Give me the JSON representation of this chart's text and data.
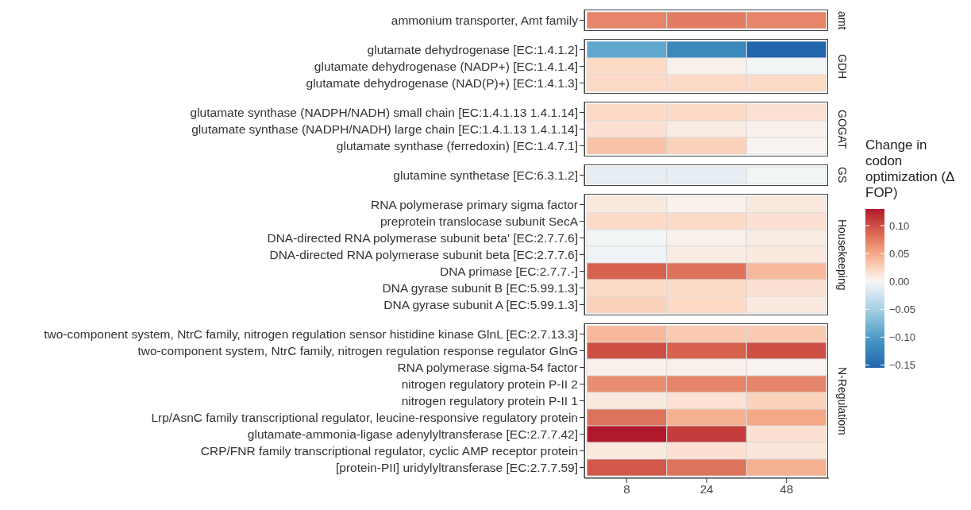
{
  "chart_data": {
    "type": "heatmap",
    "categories": [
      "8",
      "24",
      "48"
    ],
    "y_categories": [
      "ammonium transporter, Amt family",
      "glutamate dehydrogenase [EC:1.4.1.2]",
      "glutamate dehydrogenase (NADP+) [EC:1.4.1.4]",
      "glutamate dehydrogenase (NAD(P)+) [EC:1.4.1.3]",
      "glutamate synthase (NADPH/NADH) small chain [EC:1.4.1.13 1.4.1.14]",
      "glutamate synthase (NADPH/NADH) large chain [EC:1.4.1.13 1.4.1.14]",
      "glutamate synthase (ferredoxin) [EC:1.4.7.1]",
      "glutamine synthetase [EC:6.3.1.2]",
      "RNA polymerase primary sigma factor",
      "preprotein translocase subunit SecA",
      "DNA-directed RNA polymerase subunit beta' [EC:2.7.7.6]",
      "DNA-directed RNA polymerase subunit beta [EC:2.7.7.6]",
      "DNA primase [EC:2.7.7.-]",
      "DNA gyrase subunit B [EC:5.99.1.3]",
      "DNA gyrase subunit A [EC:5.99.1.3]",
      "two-component system, NtrC family, nitrogen regulation sensor histidine kinase GlnL [EC:2.7.13.3]",
      "two-component system, NtrC family, nitrogen regulation response regulator GlnG",
      "RNA polymerase sigma-54 factor",
      "nitrogen regulatory protein P-II 2",
      "nitrogen regulatory protein P-II 1",
      "Lrp/AsnC family transcriptional regulator, leucine-responsive regulatory protein",
      "glutamate-ammonia-ligase adenylyltransferase [EC:2.7.7.42]",
      "CRP/FNR family transcriptional regulator, cyclic AMP receptor protein",
      "[protein-PII] uridylyltransferase [EC:2.7.7.59]"
    ],
    "y2_categories": [
      "amt",
      null,
      "GDH",
      null,
      null,
      "GOGAT",
      null,
      "GS",
      null,
      null,
      null,
      "Housekeeping",
      null,
      null,
      null,
      null,
      null,
      null,
      null,
      "N-Regulatiom",
      null,
      null,
      null,
      null
    ],
    "cells": [
      [
        0.07,
        0.075,
        0.07
      ],
      [
        -0.09,
        -0.12,
        -0.155
      ],
      [
        0.02,
        0.005,
        -0.003
      ],
      [
        0.02,
        0.02,
        0.02
      ],
      [
        0.02,
        0.02,
        0.015
      ],
      [
        0.015,
        0.008,
        0.005
      ],
      [
        0.035,
        0.025,
        0.003
      ],
      [
        -0.01,
        -0.01,
        -0.003
      ],
      [
        0.01,
        0.005,
        0.01
      ],
      [
        0.02,
        0.02,
        0.015
      ],
      [
        -0.003,
        0.005,
        0.008
      ],
      [
        -0.005,
        0.008,
        0.01
      ],
      [
        0.09,
        0.08,
        0.04
      ],
      [
        0.02,
        0.02,
        0.015
      ],
      [
        0.025,
        0.02,
        0.01
      ],
      [
        0.04,
        0.03,
        0.03
      ],
      [
        0.1,
        0.09,
        0.1
      ],
      [
        0.005,
        0.005,
        0.003
      ],
      [
        0.065,
        0.07,
        0.07
      ],
      [
        0.01,
        0.015,
        0.025
      ],
      [
        0.08,
        0.045,
        0.05
      ],
      [
        0.13,
        0.11,
        0.015
      ],
      [
        0.01,
        0.015,
        0.012
      ],
      [
        0.095,
        0.08,
        0.045
      ]
    ],
    "clim": [
      -0.155,
      0.13
    ],
    "cticks": [
      {
        "value": 0.1,
        "label": "0.10"
      },
      {
        "value": 0.05,
        "label": "0.05"
      },
      {
        "value": 0,
        "label": "0.00"
      },
      {
        "value": -0.05,
        "label": "−0.05"
      },
      {
        "value": -0.1,
        "label": "−0.10"
      },
      {
        "value": -0.15,
        "label": "−0.15"
      }
    ],
    "clabel": "Change in codon optimization (Δ FOP)"
  }
}
